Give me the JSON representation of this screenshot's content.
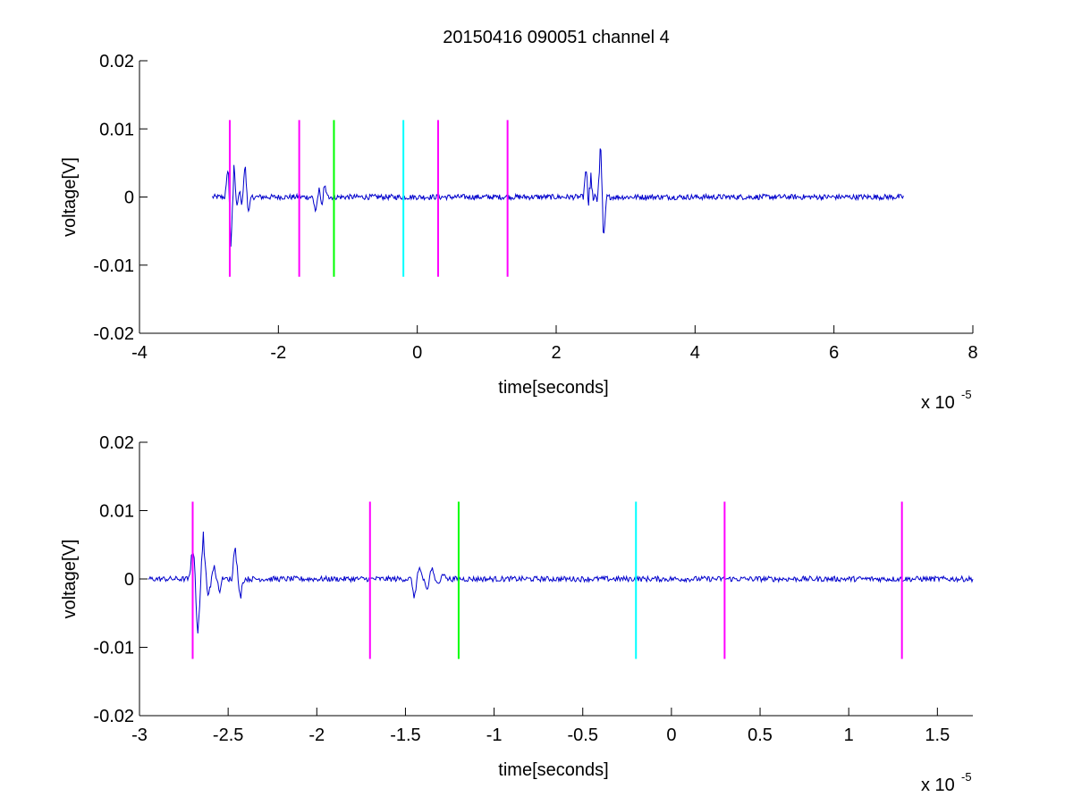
{
  "figure": {
    "title": "20150416 090051 channel 4"
  },
  "chart_data": [
    {
      "type": "line",
      "title": "20150416 090051 channel 4",
      "xlabel": "time[seconds]",
      "ylabel": "voltage[V]",
      "x_multiplier": "x 10",
      "x_multiplier_exp": "-5",
      "xlim": [
        -4,
        8
      ],
      "ylim": [
        -0.02,
        0.02
      ],
      "xticks": [
        -4,
        -2,
        0,
        2,
        4,
        6,
        8
      ],
      "xtick_labels": [
        "-4",
        "-2",
        "0",
        "2",
        "4",
        "6",
        "8"
      ],
      "yticks": [
        -0.02,
        -0.01,
        0,
        0.01,
        0.02
      ],
      "ytick_labels": [
        "-0.02",
        "-0.01",
        "0",
        "0.01",
        "0.02"
      ],
      "grid": false,
      "series": [
        {
          "color": "#0000cc",
          "x_range": [
            -2.95,
            7.0
          ],
          "baseline": 0.0,
          "noise_amplitude": 0.0004,
          "bursts": [
            {
              "x": [
                -2.72,
                -2.68,
                -2.64,
                -2.6,
                -2.56,
                -2.52,
                -2.48,
                -2.44
              ],
              "y": [
                0.006,
                -0.01,
                0.007,
                -0.003,
                0.002,
                -0.002,
                0.006,
                -0.003
              ]
            },
            {
              "x": [
                -1.46,
                -1.42,
                -1.38,
                -1.34,
                -1.3
              ],
              "y": [
                -0.003,
                0.002,
                -0.002,
                0.002,
                0.0
              ]
            },
            {
              "x": [
                2.44,
                2.47,
                2.5,
                2.53,
                2.56,
                2.6,
                2.64,
                2.68
              ],
              "y": [
                0.006,
                -0.006,
                0.007,
                -0.004,
                0.002,
                -0.002,
                0.01,
                -0.007
              ]
            }
          ]
        }
      ],
      "vlines": [
        {
          "x": -2.7,
          "ymin": -0.0117,
          "ymax": 0.0113,
          "color": "#ff00ff"
        },
        {
          "x": -1.7,
          "ymin": -0.0117,
          "ymax": 0.0113,
          "color": "#ff00ff"
        },
        {
          "x": -1.2,
          "ymin": -0.0117,
          "ymax": 0.0113,
          "color": "#00ff00"
        },
        {
          "x": -0.2,
          "ymin": -0.0117,
          "ymax": 0.0113,
          "color": "#00ffff"
        },
        {
          "x": 0.3,
          "ymin": -0.0117,
          "ymax": 0.0113,
          "color": "#ff00ff"
        },
        {
          "x": 1.3,
          "ymin": -0.0117,
          "ymax": 0.0113,
          "color": "#ff00ff"
        }
      ]
    },
    {
      "type": "line",
      "title": "",
      "xlabel": "time[seconds]",
      "ylabel": "voltage[V]",
      "x_multiplier": "x 10",
      "x_multiplier_exp": "-5",
      "xlim": [
        -3.0,
        1.7
      ],
      "ylim": [
        -0.02,
        0.02
      ],
      "xticks": [
        -3,
        -2.5,
        -2,
        -1.5,
        -1,
        -0.5,
        0,
        0.5,
        1,
        1.5
      ],
      "xtick_labels": [
        "-3",
        "-2.5",
        "-2",
        "-1.5",
        "-1",
        "-0.5",
        "0",
        "0.5",
        "1",
        "1.5"
      ],
      "yticks": [
        -0.02,
        -0.01,
        0,
        0.01,
        0.02
      ],
      "ytick_labels": [
        "-0.02",
        "-0.01",
        "0",
        "0.01",
        "0.02"
      ],
      "grid": false,
      "series": [
        {
          "color": "#0000cc",
          "x_range": [
            -2.95,
            1.7
          ],
          "baseline": 0.0,
          "noise_amplitude": 0.0004,
          "bursts": [
            {
              "x": [
                -2.7,
                -2.67,
                -2.64,
                -2.61,
                -2.58,
                -2.55,
                -2.5,
                -2.46,
                -2.43
              ],
              "y": [
                0.006,
                -0.01,
                0.007,
                -0.003,
                0.002,
                -0.002,
                0.0,
                0.006,
                -0.003
              ]
            },
            {
              "x": [
                -1.45,
                -1.42,
                -1.38,
                -1.35,
                -1.32,
                -1.28
              ],
              "y": [
                -0.003,
                0.002,
                -0.002,
                0.002,
                -0.001,
                0.001
              ]
            }
          ]
        }
      ],
      "vlines": [
        {
          "x": -2.7,
          "ymin": -0.0117,
          "ymax": 0.0113,
          "color": "#ff00ff"
        },
        {
          "x": -1.7,
          "ymin": -0.0117,
          "ymax": 0.0113,
          "color": "#ff00ff"
        },
        {
          "x": -1.2,
          "ymin": -0.0117,
          "ymax": 0.0113,
          "color": "#00ff00"
        },
        {
          "x": -0.2,
          "ymin": -0.0117,
          "ymax": 0.0113,
          "color": "#00ffff"
        },
        {
          "x": 0.3,
          "ymin": -0.0117,
          "ymax": 0.0113,
          "color": "#ff00ff"
        },
        {
          "x": 1.3,
          "ymin": -0.0117,
          "ymax": 0.0113,
          "color": "#ff00ff"
        }
      ]
    }
  ]
}
